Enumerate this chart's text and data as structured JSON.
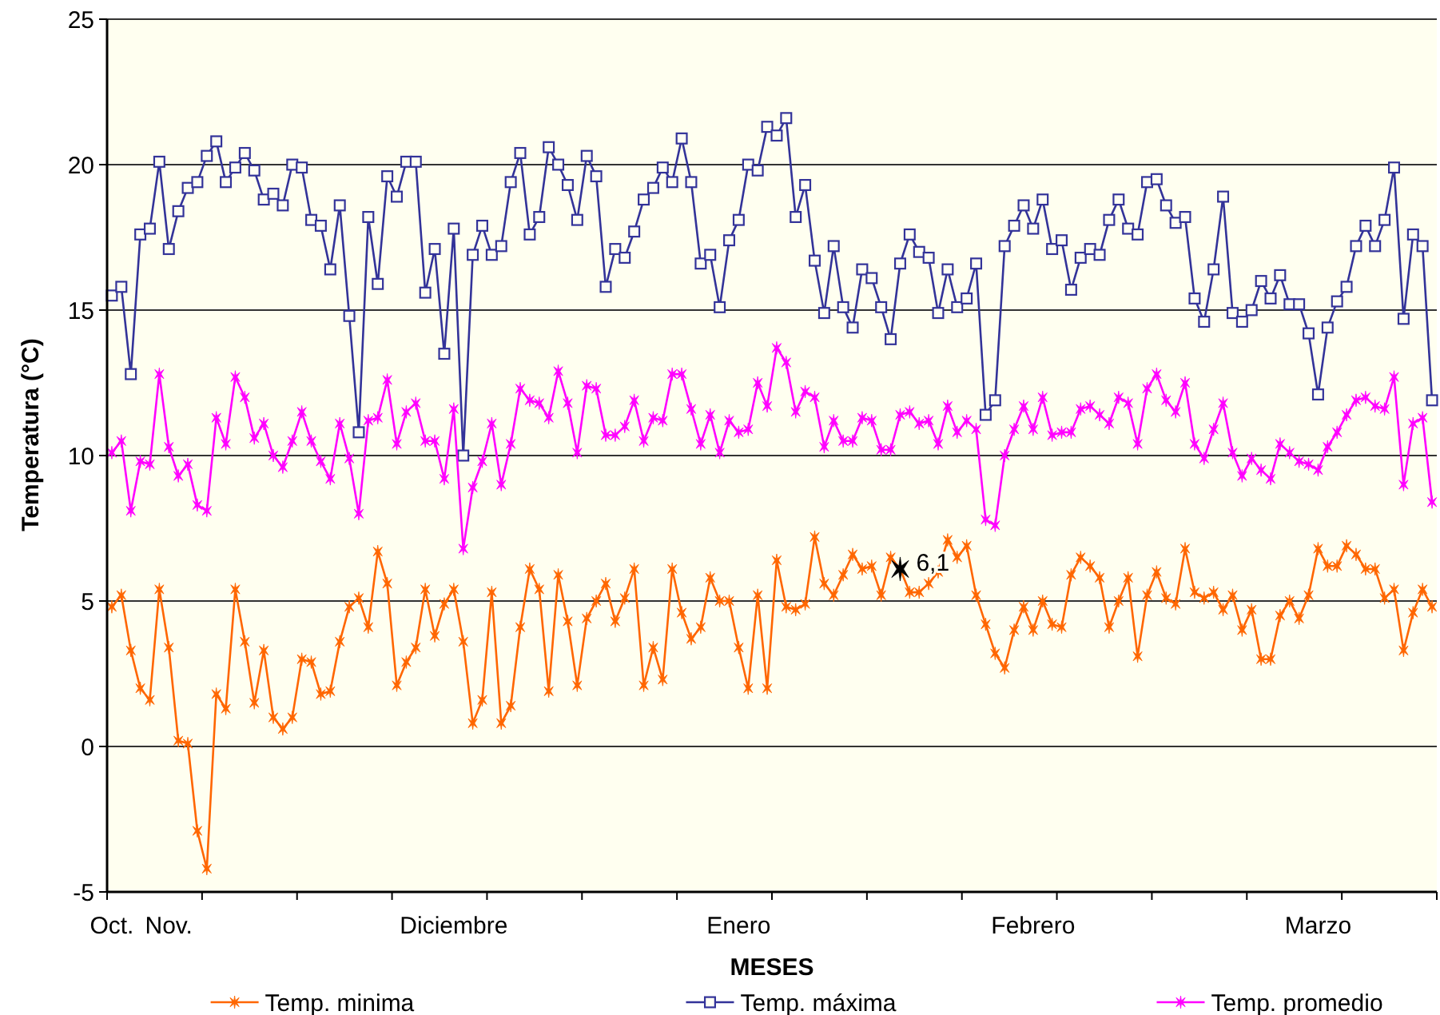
{
  "chart_data": {
    "type": "line",
    "xlabel": "MESES",
    "ylabel": "Temperatura (°C)",
    "categories": [
      "Oct.",
      null,
      null,
      null,
      null,
      null,
      "Nov.",
      null,
      null,
      null,
      null,
      null,
      null,
      null,
      null,
      null,
      null,
      null,
      null,
      null,
      null,
      null,
      null,
      null,
      null,
      null,
      null,
      null,
      null,
      null,
      null,
      null,
      null,
      null,
      null,
      null,
      "Diciembre",
      null,
      null,
      null,
      null,
      null,
      null,
      null,
      null,
      null,
      null,
      null,
      null,
      null,
      null,
      null,
      null,
      null,
      null,
      null,
      null,
      null,
      null,
      null,
      null,
      null,
      null,
      null,
      null,
      null,
      "Enero",
      null,
      null,
      null,
      null,
      null,
      null,
      null,
      null,
      null,
      null,
      null,
      null,
      null,
      null,
      null,
      null,
      null,
      null,
      null,
      null,
      null,
      null,
      null,
      null,
      null,
      null,
      null,
      null,
      null,
      null,
      "Febrero",
      null,
      null,
      null,
      null,
      null,
      null,
      null,
      null,
      null,
      null,
      null,
      null,
      null,
      null,
      null,
      null,
      null,
      null,
      null,
      null,
      null,
      null,
      null,
      null,
      null,
      null,
      null,
      null,
      null,
      "Marzo",
      null,
      null,
      null,
      null,
      null,
      null,
      null,
      null,
      null,
      null,
      null,
      null
    ],
    "ylim": [
      -5,
      25
    ],
    "yticks": [
      -5,
      0,
      5,
      10,
      15,
      20,
      25
    ],
    "grid": "y",
    "legend": "bottom",
    "series": [
      {
        "name": "Temp. minima",
        "color": "#ff6600",
        "marker": "cross",
        "values": [
          4.8,
          5.2,
          3.3,
          2.0,
          1.6,
          5.4,
          3.4,
          0.2,
          0.1,
          -2.9,
          -4.2,
          1.8,
          1.3,
          5.4,
          3.6,
          1.5,
          3.3,
          1.0,
          0.6,
          1.0,
          3.0,
          2.9,
          1.8,
          1.9,
          3.6,
          4.8,
          5.1,
          4.1,
          6.7,
          5.6,
          2.1,
          2.9,
          3.4,
          5.4,
          3.8,
          4.9,
          5.4,
          3.6,
          0.8,
          1.6,
          5.3,
          0.8,
          1.4,
          4.1,
          6.1,
          5.4,
          1.9,
          5.9,
          4.3,
          2.1,
          4.4,
          5.0,
          5.6,
          4.3,
          5.1,
          6.1,
          2.1,
          3.4,
          2.3,
          6.1,
          4.6,
          3.7,
          4.1,
          5.8,
          5.0,
          5.0,
          3.4,
          2.0,
          5.2,
          2.0,
          6.4,
          4.8,
          4.7,
          4.9,
          7.2,
          5.6,
          5.2,
          5.9,
          6.6,
          6.1,
          6.2,
          5.2,
          6.5,
          6.1,
          5.3,
          5.3,
          5.6,
          6.0,
          7.1,
          6.5,
          6.9,
          5.2,
          4.2,
          3.2,
          2.7,
          4.0,
          4.8,
          4.0,
          5.0,
          4.2,
          4.1,
          5.9,
          6.5,
          6.2,
          5.8,
          4.1,
          5.0,
          5.8,
          3.1,
          5.2,
          6.0,
          5.1,
          4.9,
          6.8,
          5.3,
          5.1,
          5.3,
          4.7,
          5.2,
          4.0,
          4.7,
          3.0,
          3.0,
          4.5,
          5.0,
          4.4,
          5.2,
          6.8,
          6.2,
          6.2,
          6.9,
          6.6,
          6.1,
          6.1,
          5.1,
          5.4,
          3.3,
          4.6,
          5.4,
          4.8
        ],
        "value_labels": [
          null,
          null,
          null,
          null,
          null,
          null,
          null,
          null,
          null,
          null,
          null,
          null,
          null,
          null,
          null,
          null,
          null,
          null,
          null,
          null,
          null,
          null,
          null,
          null,
          null,
          null,
          null,
          null,
          null,
          null,
          null,
          null,
          null,
          null,
          null,
          null,
          null,
          null,
          null,
          null,
          null,
          null,
          null,
          null,
          null,
          null,
          null,
          null,
          null,
          null,
          null,
          null,
          null,
          null,
          null,
          null,
          null,
          null,
          null,
          null,
          null,
          null,
          null,
          null,
          null,
          null,
          null,
          null,
          null,
          null,
          null,
          null,
          null,
          null,
          null,
          null,
          null,
          null,
          null,
          null,
          null,
          null,
          null,
          "6,1",
          null,
          null,
          null,
          null,
          null,
          null,
          null,
          null,
          null,
          null,
          null,
          null,
          null,
          null,
          null,
          null,
          null,
          null,
          null,
          null,
          null,
          null,
          null,
          null,
          null,
          null,
          null,
          null,
          null,
          null,
          null,
          null,
          null,
          null,
          null,
          null,
          null,
          null,
          null,
          null,
          null,
          null,
          null,
          null,
          null,
          null,
          null,
          null,
          null,
          null,
          null,
          null,
          null,
          null,
          null,
          null
        ],
        "colors": [
          "#ff6600",
          "#ff6600",
          "#ff6600",
          "#ff6600",
          "#ff6600",
          "#ff6600",
          "#ff6600",
          "#ff6600",
          "#ff6600",
          "#ff6600",
          "#ff6600",
          "#ff6600",
          "#ff6600",
          "#ff6600",
          "#ff6600",
          "#ff6600",
          "#ff6600",
          "#ff6600",
          "#ff6600",
          "#ff6600",
          "#ff6600",
          "#ff6600",
          "#ff6600",
          "#ff6600",
          "#ff6600",
          "#ff6600",
          "#ff6600",
          "#ff6600",
          "#ff6600",
          "#ff6600",
          "#ff6600",
          "#ff6600",
          "#ff6600",
          "#ff6600",
          "#ff6600",
          "#ff6600",
          "#ff6600",
          "#ff6600",
          "#ff6600",
          "#ff6600",
          "#ff6600",
          "#ff6600",
          "#ff6600",
          "#ff6600",
          "#ff6600",
          "#ff6600",
          "#ff6600",
          "#ff6600",
          "#ff6600",
          "#ff6600",
          "#ff6600",
          "#ff6600",
          "#ff6600",
          "#ff6600",
          "#ff6600",
          "#ff6600",
          "#ff6600",
          "#ff6600",
          "#ff6600",
          "#ff6600",
          "#ff6600",
          "#ff6600",
          "#ff6600",
          "#ff6600",
          "#ff6600",
          "#ff6600",
          "#ff6600",
          "#ff6600",
          "#ff6600",
          "#ff6600",
          "#ff6600",
          "#ff6600",
          "#ff6600",
          "#ff6600",
          "#ff6600",
          "#ff6600",
          "#ff6600",
          "#ff6600",
          "#ff6600",
          "#ff6600",
          "#ff6600",
          "#ff6600",
          "#ff6600",
          "#000000",
          "#ff6600",
          "#ff6600",
          "#ff6600",
          "#ff6600",
          "#ff6600",
          "#ff6600",
          "#ff6600",
          "#ff6600",
          "#ff6600",
          "#ff6600",
          "#ff6600",
          "#ff6600",
          "#ff6600",
          "#ff6600",
          "#ff6600",
          "#ff6600",
          "#ff6600",
          "#ff6600",
          "#ff6600",
          "#ff6600",
          "#ff6600",
          "#ff6600",
          "#ff6600",
          "#ff6600",
          "#ff6600",
          "#ff6600",
          "#ff6600",
          "#ff6600",
          "#ff6600",
          "#ff6600",
          "#ff6600",
          "#ff6600",
          "#ff6600",
          "#ff6600",
          "#ff6600",
          "#ff6600",
          "#ff6600",
          "#ff6600",
          "#ff6600",
          "#ff6600",
          "#ff6600",
          "#ff6600",
          "#ff6600",
          "#ff6600",
          "#ff6600",
          "#ff6600",
          "#ff6600",
          "#ff6600",
          "#ff6600",
          "#ff6600",
          "#ff6600",
          "#ff6600",
          "#ff6600",
          "#ff6600",
          "#ff6600",
          "#ff6600"
        ]
      },
      {
        "name": "Temp. máxima",
        "color": "#333399",
        "marker": "square",
        "values": [
          15.5,
          15.8,
          12.8,
          17.6,
          17.8,
          20.1,
          17.1,
          18.4,
          19.2,
          19.4,
          20.3,
          20.8,
          19.4,
          19.9,
          20.4,
          19.8,
          18.8,
          19.0,
          18.6,
          20.0,
          19.9,
          18.1,
          17.9,
          16.4,
          18.6,
          14.8,
          10.8,
          18.2,
          15.9,
          19.6,
          18.9,
          20.1,
          20.1,
          15.6,
          17.1,
          13.5,
          17.8,
          10.0,
          16.9,
          17.9,
          16.9,
          17.2,
          19.4,
          20.4,
          17.6,
          18.2,
          20.6,
          20.0,
          19.3,
          18.1,
          20.3,
          19.6,
          15.8,
          17.1,
          16.8,
          17.7,
          18.8,
          19.2,
          19.9,
          19.4,
          20.9,
          19.4,
          16.6,
          16.9,
          15.1,
          17.4,
          18.1,
          20.0,
          19.8,
          21.3,
          21.0,
          21.6,
          18.2,
          19.3,
          16.7,
          14.9,
          17.2,
          15.1,
          14.4,
          16.4,
          16.1,
          15.1,
          14.0,
          16.6,
          17.6,
          17.0,
          16.8,
          14.9,
          16.4,
          15.1,
          15.4,
          16.6,
          11.4,
          11.9,
          17.2,
          17.9,
          18.6,
          17.8,
          18.8,
          17.1,
          17.4,
          15.7,
          16.8,
          17.1,
          16.9,
          18.1,
          18.8,
          17.8,
          17.6,
          19.4,
          19.5,
          18.6,
          18.0,
          18.2,
          15.4,
          14.6,
          16.4,
          18.9,
          14.9,
          14.6,
          15.0,
          16.0,
          15.4,
          16.2,
          15.2,
          15.2,
          14.2,
          12.1,
          14.4,
          15.3,
          15.8,
          17.2,
          17.9,
          17.2,
          18.1,
          19.9,
          14.7,
          17.6,
          17.2,
          11.9
        ]
      },
      {
        "name": "Temp. promedio",
        "color": "#ff00ff",
        "marker": "cross",
        "values": [
          10.1,
          10.5,
          8.1,
          9.8,
          9.7,
          12.8,
          10.3,
          9.3,
          9.7,
          8.3,
          8.1,
          11.3,
          10.4,
          12.7,
          12.0,
          10.6,
          11.1,
          10.0,
          9.6,
          10.5,
          11.5,
          10.5,
          9.8,
          9.2,
          11.1,
          9.9,
          8.0,
          11.2,
          11.3,
          12.6,
          10.4,
          11.5,
          11.8,
          10.5,
          10.5,
          9.2,
          11.6,
          6.8,
          8.9,
          9.8,
          11.1,
          9.0,
          10.4,
          12.3,
          11.9,
          11.8,
          11.3,
          12.9,
          11.8,
          10.1,
          12.4,
          12.3,
          10.7,
          10.7,
          11.0,
          11.9,
          10.5,
          11.3,
          11.2,
          12.8,
          12.8,
          11.6,
          10.4,
          11.4,
          10.1,
          11.2,
          10.8,
          10.9,
          12.5,
          11.7,
          13.7,
          13.2,
          11.5,
          12.2,
          12.0,
          10.3,
          11.2,
          10.5,
          10.5,
          11.3,
          11.2,
          10.2,
          10.2,
          11.4,
          11.5,
          11.1,
          11.2,
          10.4,
          11.7,
          10.8,
          11.2,
          10.9,
          7.8,
          7.6,
          10.0,
          10.9,
          11.7,
          10.9,
          12.0,
          10.7,
          10.8,
          10.8,
          11.6,
          11.7,
          11.4,
          11.1,
          12.0,
          11.8,
          10.4,
          12.3,
          12.8,
          11.9,
          11.5,
          12.5,
          10.4,
          9.9,
          10.9,
          11.8,
          10.1,
          9.3,
          9.9,
          9.5,
          9.2,
          10.4,
          10.1,
          9.8,
          9.7,
          9.5,
          10.3,
          10.8,
          11.4,
          11.9,
          12.0,
          11.7,
          11.6,
          12.7,
          9.0,
          11.1,
          11.3,
          8.4
        ]
      }
    ]
  }
}
